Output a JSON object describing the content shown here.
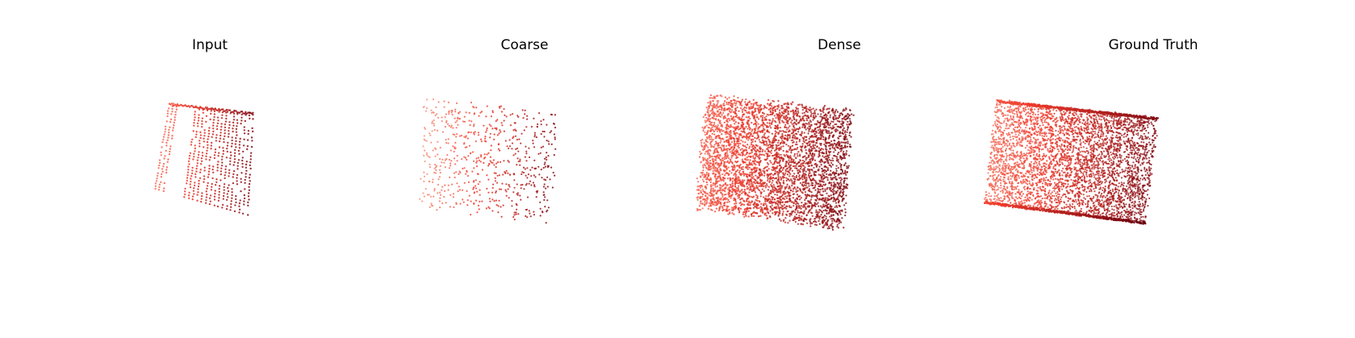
{
  "figure": {
    "panels": [
      {
        "id": "input",
        "title": "Input",
        "density": "sparse-structured"
      },
      {
        "id": "coarse",
        "title": "Coarse",
        "density": "sparse-random"
      },
      {
        "id": "dense",
        "title": "Dense",
        "density": "dense"
      },
      {
        "id": "ground_truth",
        "title": "Ground Truth",
        "density": "dense-structured"
      }
    ],
    "colormap": {
      "light": "#fcbba1",
      "mid": "#ef3b2c",
      "dark": "#67000d"
    }
  }
}
